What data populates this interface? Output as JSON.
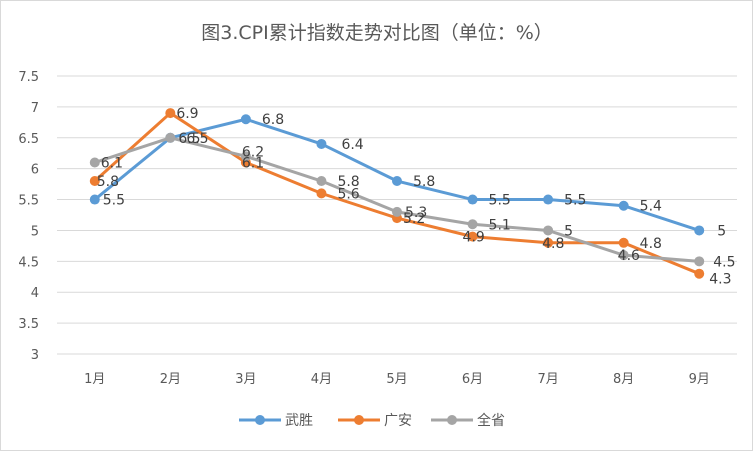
{
  "chart_data": {
    "type": "line",
    "title": "图3.CPI累计指数走势对比图（单位：%）",
    "categories": [
      "1月",
      "2月",
      "3月",
      "4月",
      "5月",
      "6月",
      "7月",
      "8月",
      "9月"
    ],
    "ylim": [
      3,
      7.5
    ],
    "yticks": [
      "3",
      "3.5",
      "4",
      "4.5",
      "5",
      "5.5",
      "6",
      "6.5",
      "7",
      "7.5"
    ],
    "grid": true,
    "legend_position": "bottom",
    "series": [
      {
        "name": "武胜",
        "color": "#5b9bd5",
        "values": [
          5.5,
          6.5,
          6.8,
          6.4,
          5.8,
          5.5,
          5.5,
          5.4,
          5
        ]
      },
      {
        "name": "广安",
        "color": "#ed7d31",
        "values": [
          5.8,
          6.9,
          6.1,
          5.6,
          5.2,
          4.9,
          4.8,
          4.8,
          4.3
        ]
      },
      {
        "name": "全省",
        "color": "#a5a5a5",
        "values": [
          6.1,
          6.5,
          6.2,
          5.8,
          5.3,
          5.1,
          5,
          4.6,
          4.5
        ]
      }
    ]
  }
}
